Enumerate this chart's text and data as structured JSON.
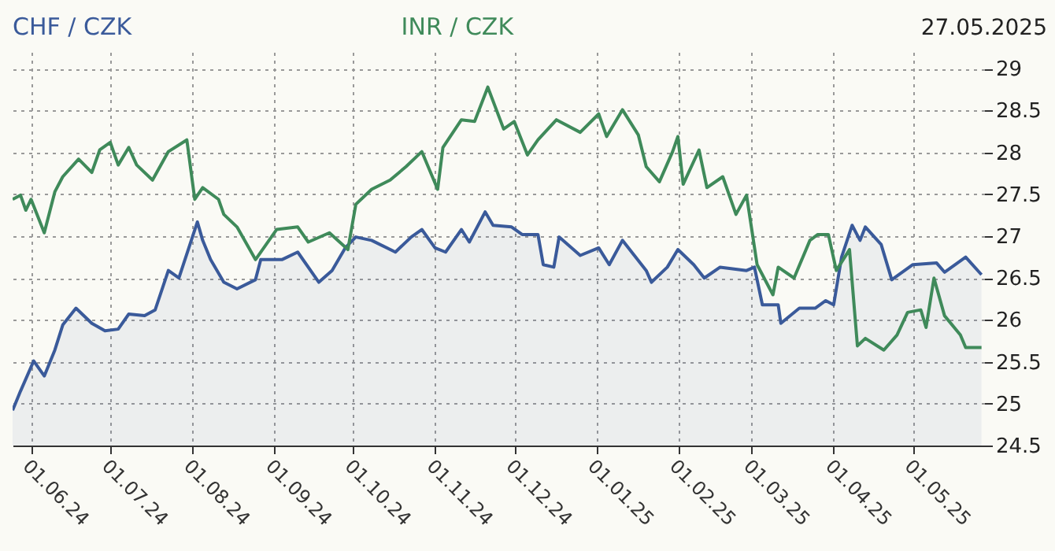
{
  "chart_data": {
    "type": "line",
    "annotations": [
      "27.05.2025"
    ],
    "legend": "top",
    "grid": true,
    "ylim": [
      24.5,
      29.2
    ],
    "yticks": [
      24.5,
      25,
      25.5,
      26,
      26.5,
      27,
      27.5,
      28,
      28.5,
      29
    ],
    "xlim": [
      "2024-05-25",
      "2025-05-28"
    ],
    "xticks": [
      {
        "value": "2024-06-01",
        "label": "01.06.24"
      },
      {
        "value": "2024-07-01",
        "label": "01.07.24"
      },
      {
        "value": "2024-08-01",
        "label": "01.08.24"
      },
      {
        "value": "2024-09-01",
        "label": "01.09.24"
      },
      {
        "value": "2024-10-01",
        "label": "01.10.24"
      },
      {
        "value": "2024-11-01",
        "label": "01.11.24"
      },
      {
        "value": "2024-12-01",
        "label": "01.12.24"
      },
      {
        "value": "2025-01-01",
        "label": "01.01.25"
      },
      {
        "value": "2025-02-01",
        "label": "01.02.25"
      },
      {
        "value": "2025-03-01",
        "label": "01.03.25"
      },
      {
        "value": "2025-04-01",
        "label": "01.04.25"
      },
      {
        "value": "2025-05-01",
        "label": "01.05.25"
      }
    ],
    "series": [
      {
        "name": "CHF / CZK",
        "type": "area",
        "color": "#3a5a9a",
        "x": [
          "2024-05-25",
          "2024-05-28",
          "2024-06-02",
          "2024-06-06",
          "2024-06-10",
          "2024-06-13",
          "2024-06-18",
          "2024-06-24",
          "2024-06-29",
          "2024-07-04",
          "2024-07-08",
          "2024-07-14",
          "2024-07-18",
          "2024-07-23",
          "2024-07-27",
          "2024-08-03",
          "2024-08-05",
          "2024-08-08",
          "2024-08-13",
          "2024-08-18",
          "2024-08-25",
          "2024-08-27",
          "2024-09-04",
          "2024-09-10",
          "2024-09-18",
          "2024-09-23",
          "2024-09-28",
          "2024-10-02",
          "2024-10-08",
          "2024-10-17",
          "2024-10-23",
          "2024-10-27",
          "2024-11-01",
          "2024-11-05",
          "2024-11-11",
          "2024-11-14",
          "2024-11-20",
          "2024-11-23",
          "2024-11-30",
          "2024-12-04",
          "2024-12-10",
          "2024-12-12",
          "2024-12-16",
          "2024-12-18",
          "2024-12-26",
          "2025-01-02",
          "2025-01-06",
          "2025-01-11",
          "2025-01-20",
          "2025-01-22",
          "2025-01-28",
          "2025-02-01",
          "2025-02-07",
          "2025-02-11",
          "2025-02-17",
          "2025-02-27",
          "2025-03-02",
          "2025-03-05",
          "2025-03-11",
          "2025-03-12",
          "2025-03-19",
          "2025-03-25",
          "2025-03-29",
          "2025-04-01",
          "2025-04-04",
          "2025-04-08",
          "2025-04-11",
          "2025-04-13",
          "2025-04-19",
          "2025-04-23",
          "2025-05-01",
          "2025-05-10",
          "2025-05-13",
          "2025-05-21",
          "2025-05-27"
        ],
        "values": [
          24.92,
          25.15,
          25.51,
          25.33,
          25.64,
          25.94,
          26.14,
          25.96,
          25.87,
          25.89,
          26.07,
          26.05,
          26.12,
          26.59,
          26.5,
          27.17,
          26.95,
          26.72,
          26.45,
          26.37,
          26.48,
          26.72,
          26.72,
          26.81,
          26.45,
          26.59,
          26.86,
          26.99,
          26.95,
          26.81,
          26.99,
          27.08,
          26.86,
          26.81,
          27.08,
          26.93,
          27.29,
          27.13,
          27.11,
          27.02,
          27.02,
          26.66,
          26.63,
          26.99,
          26.77,
          26.86,
          26.66,
          26.95,
          26.59,
          26.45,
          26.63,
          26.84,
          26.66,
          26.5,
          26.63,
          26.59,
          26.63,
          26.18,
          26.18,
          25.96,
          26.14,
          26.14,
          26.23,
          26.18,
          26.75,
          27.13,
          26.95,
          27.11,
          26.9,
          26.48,
          26.66,
          26.68,
          26.57,
          26.75,
          26.54
        ]
      },
      {
        "name": "INR / CZK",
        "color": "#3f8a5a",
        "x": [
          "2024-05-25",
          "2024-05-28",
          "2024-05-30",
          "2024-06-01",
          "2024-06-06",
          "2024-06-10",
          "2024-06-13",
          "2024-06-19",
          "2024-06-24",
          "2024-06-27",
          "2024-07-01",
          "2024-07-04",
          "2024-07-08",
          "2024-07-11",
          "2024-07-17",
          "2024-07-23",
          "2024-07-30",
          "2024-08-02",
          "2024-08-05",
          "2024-08-11",
          "2024-08-13",
          "2024-08-18",
          "2024-08-25",
          "2024-09-02",
          "2024-09-10",
          "2024-09-14",
          "2024-09-22",
          "2024-09-29",
          "2024-10-02",
          "2024-10-08",
          "2024-10-15",
          "2024-10-21",
          "2024-10-27",
          "2024-11-02",
          "2024-11-04",
          "2024-11-11",
          "2024-11-16",
          "2024-11-21",
          "2024-11-27",
          "2024-12-01",
          "2024-12-06",
          "2024-12-10",
          "2024-12-17",
          "2024-12-26",
          "2025-01-02",
          "2025-01-05",
          "2025-01-11",
          "2025-01-17",
          "2025-01-20",
          "2025-01-25",
          "2025-01-30",
          "2025-02-01",
          "2025-02-03",
          "2025-02-09",
          "2025-02-12",
          "2025-02-18",
          "2025-02-23",
          "2025-02-27",
          "2025-03-03",
          "2025-03-09",
          "2025-03-11",
          "2025-03-17",
          "2025-03-23",
          "2025-03-26",
          "2025-03-30",
          "2025-04-02",
          "2025-04-07",
          "2025-04-10",
          "2025-04-13",
          "2025-04-20",
          "2025-04-25",
          "2025-04-29",
          "2025-05-04",
          "2025-05-06",
          "2025-05-09",
          "2025-05-13",
          "2025-05-19",
          "2025-05-21",
          "2025-05-27"
        ],
        "values": [
          27.44,
          27.49,
          27.31,
          27.44,
          27.04,
          27.53,
          27.71,
          27.92,
          27.76,
          28.03,
          28.12,
          27.85,
          28.06,
          27.85,
          27.67,
          28.01,
          28.15,
          27.44,
          27.58,
          27.44,
          27.26,
          27.11,
          26.72,
          27.08,
          27.11,
          26.93,
          27.04,
          26.84,
          27.38,
          27.56,
          27.67,
          27.83,
          28.01,
          27.56,
          28.06,
          28.39,
          28.37,
          28.78,
          28.28,
          28.37,
          27.97,
          28.15,
          28.39,
          28.24,
          28.46,
          28.19,
          28.51,
          28.21,
          27.83,
          27.65,
          28.01,
          28.19,
          27.62,
          28.03,
          27.58,
          27.71,
          27.26,
          27.49,
          26.66,
          26.3,
          26.63,
          26.5,
          26.95,
          27.02,
          27.02,
          26.59,
          26.84,
          25.69,
          25.78,
          25.64,
          25.82,
          26.09,
          26.12,
          25.91,
          26.5,
          26.05,
          25.82,
          25.67,
          25.67
        ]
      }
    ]
  }
}
